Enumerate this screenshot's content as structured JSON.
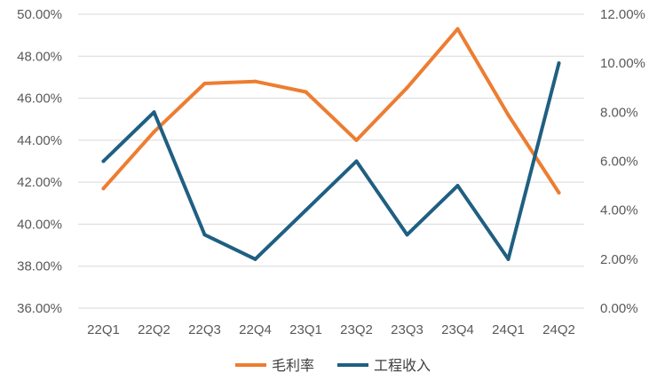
{
  "chart_data": {
    "type": "line",
    "categories": [
      "22Q1",
      "22Q2",
      "22Q3",
      "22Q4",
      "23Q1",
      "23Q2",
      "23Q3",
      "23Q4",
      "24Q1",
      "24Q2"
    ],
    "series": [
      {
        "name": "毛利率",
        "axis": "left",
        "color": "#ED7D31",
        "values": [
          41.7,
          44.4,
          46.7,
          46.8,
          46.3,
          44.0,
          46.5,
          49.3,
          45.2,
          41.5
        ]
      },
      {
        "name": "工程收入",
        "axis": "right",
        "color": "#1F5F82",
        "values": [
          6.0,
          8.0,
          3.0,
          2.0,
          4.0,
          6.0,
          3.0,
          5.0,
          2.0,
          10.0
        ]
      }
    ],
    "left_axis": {
      "min": 36,
      "max": 50,
      "step": 2,
      "tick_labels": [
        "36.00%",
        "38.00%",
        "40.00%",
        "42.00%",
        "44.00%",
        "46.00%",
        "48.00%",
        "50.00%"
      ]
    },
    "right_axis": {
      "min": 0,
      "max": 12,
      "step": 2,
      "tick_labels": [
        "0.00%",
        "2.00%",
        "4.00%",
        "6.00%",
        "8.00%",
        "10.00%",
        "12.00%"
      ]
    },
    "gridlines": true,
    "legend_position": "bottom",
    "title": ""
  }
}
